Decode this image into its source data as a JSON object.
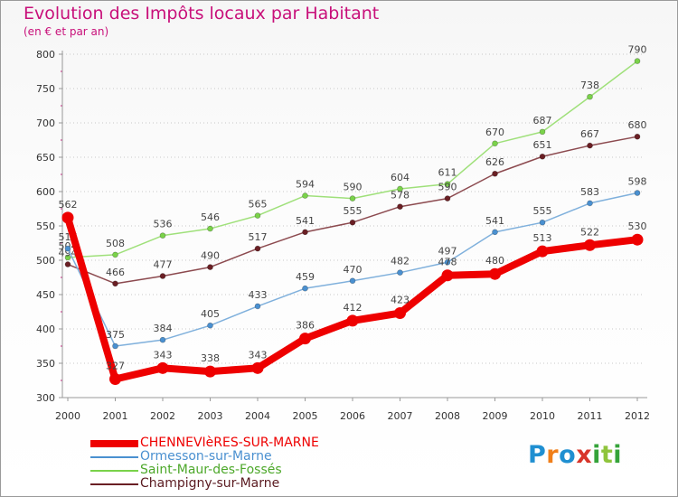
{
  "title": "Evolution des Impôts locaux par Habitant",
  "subtitle": "(en € et par an)",
  "logo": {
    "letters": [
      "P",
      "r",
      "o",
      "x",
      "i",
      "t",
      "i"
    ],
    "colors": [
      "#1f8fd1",
      "#f07f1a",
      "#1f8fd1",
      "#d8352a",
      "#35a33a",
      "#8fc43c",
      "#35a33a"
    ]
  },
  "chart_data": {
    "type": "line",
    "title": "Evolution des Impôts locaux par Habitant",
    "ylabel": "(en € et par an)",
    "xlabel": "",
    "ylim": [
      300,
      800
    ],
    "yticks": [
      300,
      350,
      400,
      450,
      500,
      550,
      600,
      650,
      700,
      750,
      800
    ],
    "grid": "horizontal dotted",
    "x": [
      2000,
      2001,
      2002,
      2003,
      2004,
      2005,
      2006,
      2007,
      2008,
      2009,
      2010,
      2011,
      2012
    ],
    "series": [
      {
        "name": "Saint-Maur-des-Fossés",
        "color": "#7ad24a",
        "line_color": "#9fe07a",
        "values": [
          504,
          508,
          536,
          546,
          565,
          594,
          590,
          604,
          611,
          670,
          687,
          738,
          790
        ]
      },
      {
        "name": "Champigny-sur-Marne",
        "color": "#6a1f24",
        "line_color": "#8c4a4f",
        "values": [
          494,
          466,
          477,
          490,
          517,
          541,
          555,
          578,
          590,
          626,
          651,
          667,
          680
        ]
      },
      {
        "name": "Ormesson-sur-Marne",
        "color": "#4a90d0",
        "line_color": "#7fb0dc",
        "values": [
          517,
          375,
          384,
          405,
          433,
          459,
          470,
          482,
          497,
          541,
          555,
          583,
          598
        ]
      },
      {
        "name": "CHENNEVIèRES-SUR-MARNE",
        "color": "#ee0000",
        "line_color": "#ee0000",
        "values": [
          562,
          327,
          343,
          338,
          343,
          386,
          412,
          423,
          478,
          480,
          513,
          522,
          530
        ]
      }
    ],
    "legend": [
      {
        "name": "CHENNEVIèRES-SUR-MARNE",
        "color": "#ee0000"
      },
      {
        "name": "Ormesson-sur-Marne",
        "color": "#4a90d0"
      },
      {
        "name": "Saint-Maur-des-Fossés",
        "color": "#7ad24a"
      },
      {
        "name": "Champigny-sur-Marne",
        "color": "#6a1f24"
      }
    ],
    "legend_position": "bottom-left"
  }
}
